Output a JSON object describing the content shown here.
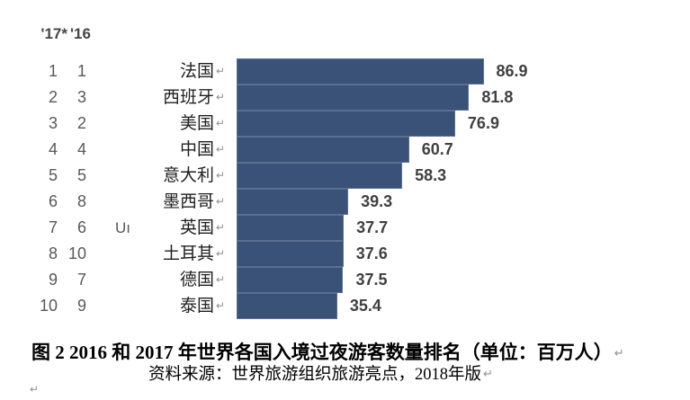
{
  "header": {
    "rank_2017_label": "'17*",
    "rank_2016_label": "'16"
  },
  "chart_data": {
    "type": "bar",
    "orientation": "horizontal",
    "title": "2016 和 2017 年世界各国入境过夜游客数量排名",
    "unit": "百万人",
    "bar_color": "#3A5277",
    "xlim": [
      0,
      90
    ],
    "grid": false,
    "legend": "none",
    "categories": [
      "法国",
      "西班牙",
      "美国",
      "中国",
      "意大利",
      "墨西哥",
      "英国",
      "土耳其",
      "德国",
      "泰国"
    ],
    "values": [
      86.9,
      81.8,
      76.9,
      60.7,
      58.3,
      39.3,
      37.7,
      37.6,
      37.5,
      35.4
    ],
    "rows": [
      {
        "rank_2017": "1",
        "rank_2016": "1",
        "country": "法国",
        "value": 86.9,
        "value_label": "86.9"
      },
      {
        "rank_2017": "2",
        "rank_2016": "3",
        "country": "西班牙",
        "value": 81.8,
        "value_label": "81.8"
      },
      {
        "rank_2017": "3",
        "rank_2016": "2",
        "country": "美国",
        "value": 76.9,
        "value_label": "76.9"
      },
      {
        "rank_2017": "4",
        "rank_2016": "4",
        "country": "中国",
        "value": 60.7,
        "value_label": "60.7"
      },
      {
        "rank_2017": "5",
        "rank_2016": "5",
        "country": "意大利",
        "value": 58.3,
        "value_label": "58.3"
      },
      {
        "rank_2017": "6",
        "rank_2016": "8",
        "country": "墨西哥",
        "value": 39.3,
        "value_label": "39.3"
      },
      {
        "rank_2017": "7",
        "rank_2016": "6",
        "country": "英国",
        "value": 37.7,
        "value_label": "37.7",
        "artifact": "Uı"
      },
      {
        "rank_2017": "8",
        "rank_2016": "10",
        "country": "土耳其",
        "value": 37.6,
        "value_label": "37.6"
      },
      {
        "rank_2017": "9",
        "rank_2016": "7",
        "country": "德国",
        "value": 37.5,
        "value_label": "37.5"
      },
      {
        "rank_2017": "10",
        "rank_2016": "9",
        "country": "泰国",
        "value": 35.4,
        "value_label": "35.4"
      }
    ]
  },
  "caption": {
    "line1": "图 2  2016 和 2017 年世界各国入境过夜游客数量排名（单位：百万人）",
    "line2": "资料来源：世界旅游组织旅游亮点，2018年版"
  },
  "marks": {
    "paragraph": "↵"
  }
}
